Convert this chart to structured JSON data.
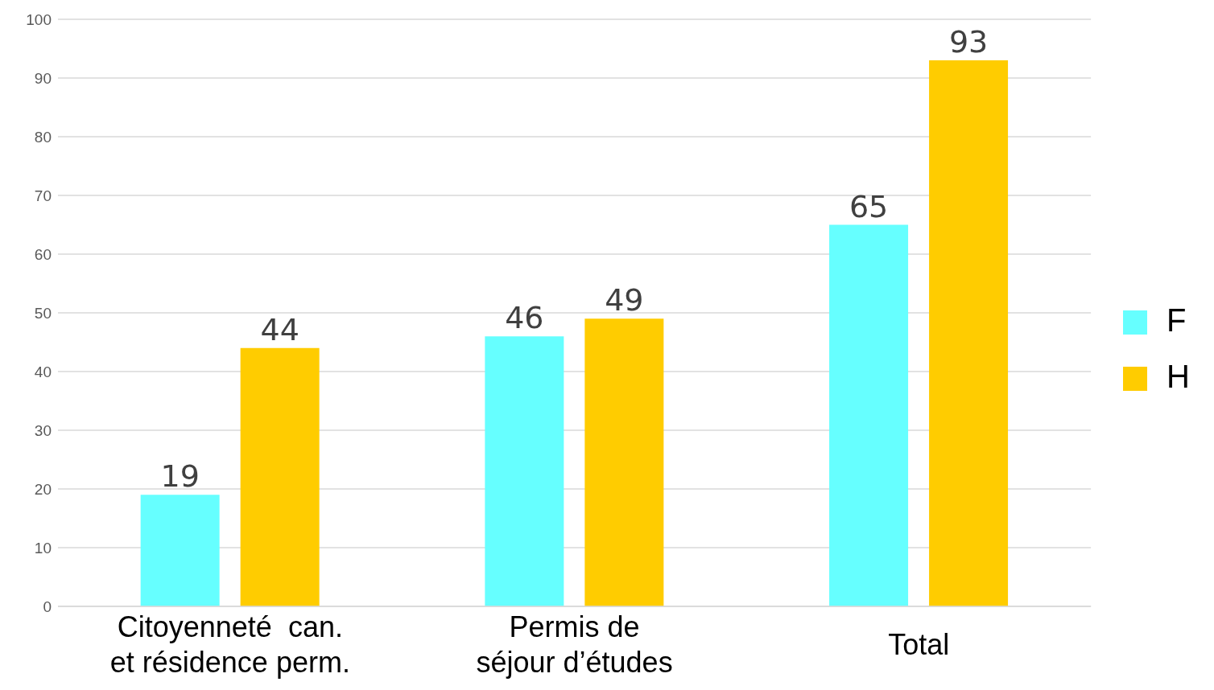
{
  "chart_data": {
    "type": "bar",
    "categories": [
      "Citoyenneté  can.\net résidence perm.",
      "Permis de\nséjour d’études",
      "Total"
    ],
    "series": [
      {
        "name": "F",
        "color": "#66ffff",
        "values": [
          19,
          46,
          65
        ]
      },
      {
        "name": "H",
        "color": "#ffcc00",
        "values": [
          44,
          49,
          93
        ]
      }
    ],
    "ylim": [
      0,
      100
    ],
    "yticks": [
      0,
      10,
      20,
      30,
      40,
      50,
      60,
      70,
      80,
      90,
      100
    ],
    "grid": "y",
    "legend": "right",
    "data_labels": true
  }
}
